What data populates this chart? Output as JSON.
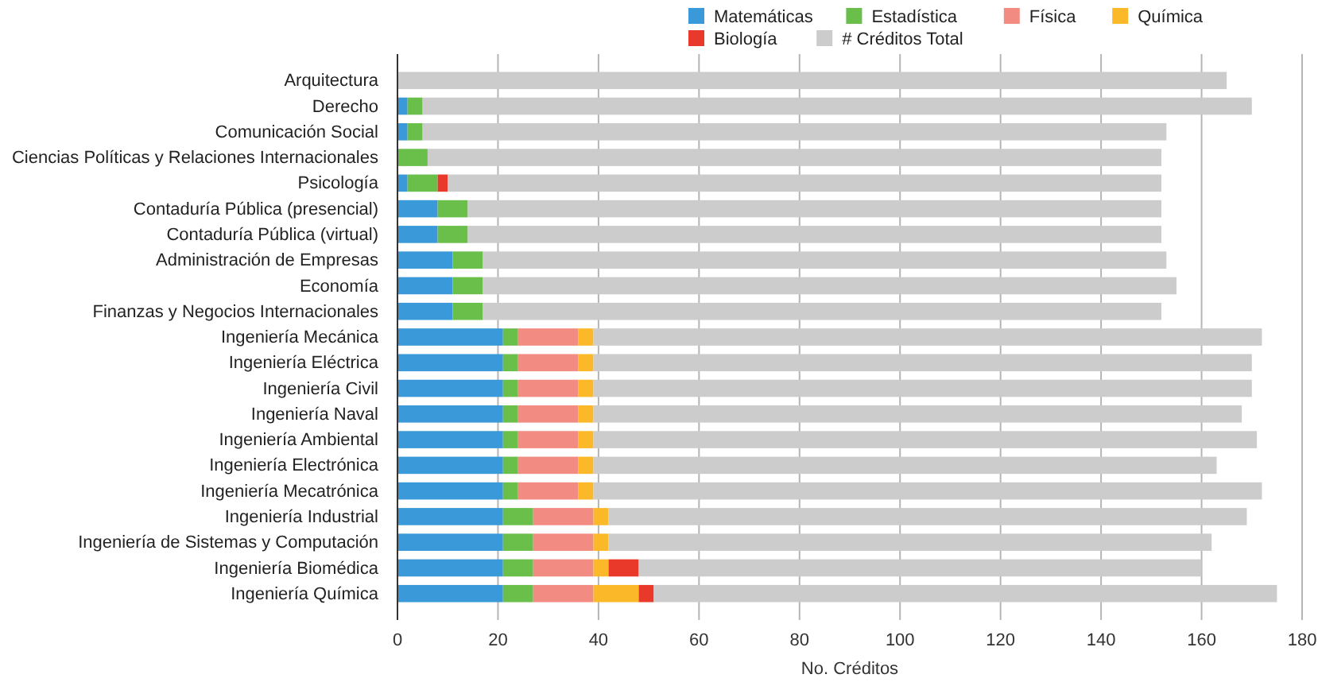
{
  "chart_data": {
    "type": "bar",
    "orientation": "horizontal",
    "stacked": true,
    "xlabel": "No. Créditos",
    "legend": "top right",
    "grid": "x",
    "categories": [
      "Arquitectura",
      "Derecho",
      "Comunicación Social",
      "Ciencias Políticas y Relaciones Internacionales",
      "Psicología",
      "Contaduría Pública (presencial)",
      "Contaduría Pública (virtual)",
      "Administración de Empresas",
      "Economía",
      "Finanzas y Negocios Internacionales",
      "Ingeniería Mecánica",
      "Ingeniería Eléctrica",
      "Ingeniería Civil",
      "Ingeniería Naval",
      "Ingeniería Ambiental",
      "Ingeniería Electrónica",
      "Ingeniería Mecatrónica",
      "Ingeniería Industrial",
      "Ingeniería de Sistemas y Computación",
      "Ingeniería Biomédica",
      "Ingeniería Química"
    ],
    "series": [
      {
        "name": "Matemáticas",
        "color": "#3a9ad9",
        "values": [
          0,
          2,
          2,
          0,
          2,
          8,
          8,
          11,
          11,
          11,
          21,
          21,
          21,
          21,
          21,
          21,
          21,
          21,
          21,
          21,
          21
        ]
      },
      {
        "name": "Estadística",
        "color": "#6abf4b",
        "values": [
          0,
          3,
          3,
          6,
          6,
          6,
          6,
          6,
          6,
          6,
          3,
          3,
          3,
          3,
          3,
          3,
          3,
          6,
          6,
          6,
          6
        ]
      },
      {
        "name": "Física",
        "color": "#f28b82",
        "values": [
          0,
          0,
          0,
          0,
          0,
          0,
          0,
          0,
          0,
          0,
          12,
          12,
          12,
          12,
          12,
          12,
          12,
          12,
          12,
          12,
          12
        ]
      },
      {
        "name": "Química",
        "color": "#fbb829",
        "values": [
          0,
          0,
          0,
          0,
          0,
          0,
          0,
          0,
          0,
          0,
          3,
          3,
          3,
          3,
          3,
          3,
          3,
          3,
          3,
          3,
          9
        ]
      },
      {
        "name": "Biología",
        "color": "#e8392a",
        "values": [
          0,
          0,
          0,
          0,
          2,
          0,
          0,
          0,
          0,
          0,
          0,
          0,
          0,
          0,
          0,
          0,
          0,
          0,
          0,
          6,
          3
        ]
      },
      {
        "name": "# Créditos Total",
        "color": "#cccccc",
        "values": [
          165,
          165,
          148,
          146,
          142,
          138,
          138,
          136,
          138,
          135,
          133,
          131,
          131,
          129,
          132,
          124,
          133,
          127,
          120,
          112,
          124
        ]
      }
    ],
    "xlim": [
      0,
      180
    ],
    "xticks": [
      0,
      20,
      40,
      60,
      80,
      100,
      120,
      140,
      160,
      180
    ]
  }
}
